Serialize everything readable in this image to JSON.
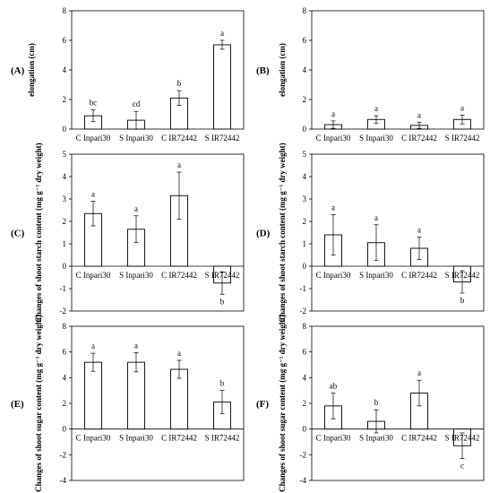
{
  "chart_data": [
    {
      "type": "bar",
      "panel_label": "(A)",
      "categories": [
        "C Inpari30",
        "S Inpari30",
        "C IR72442",
        "S IR72442"
      ],
      "values": [
        0.9,
        0.6,
        2.1,
        5.7
      ],
      "errors": [
        0.4,
        0.6,
        0.5,
        0.3
      ],
      "significance": [
        "bc",
        "cd",
        "b",
        "a"
      ],
      "ylabel": "elongation (cm)",
      "ylim": [
        0,
        8
      ],
      "yticks": [
        0,
        2,
        4,
        6,
        8
      ],
      "grid": false,
      "color": "#ffffff",
      "edge_color": "#000000"
    },
    {
      "type": "bar",
      "panel_label": "(B)",
      "categories": [
        "C Inpari30",
        "S Inpari30",
        "C IR72442",
        "S IR72442"
      ],
      "values": [
        0.3,
        0.65,
        0.25,
        0.65
      ],
      "errors": [
        0.25,
        0.25,
        0.2,
        0.3
      ],
      "significance": [
        "a",
        "a",
        "a",
        "a"
      ],
      "ylabel": "elongation (cm)",
      "ylim": [
        0,
        8
      ],
      "yticks": [
        0,
        2,
        4,
        6,
        8
      ],
      "grid": false,
      "color": "#ffffff",
      "edge_color": "#000000"
    },
    {
      "type": "bar",
      "panel_label": "(C)",
      "categories": [
        "C Inpari30",
        "S Inpari30",
        "C IR72442",
        "S IR72442"
      ],
      "values": [
        2.35,
        1.65,
        3.15,
        -0.75
      ],
      "errors": [
        0.55,
        0.6,
        1.05,
        0.5
      ],
      "significance": [
        "a",
        "a",
        "a",
        "b"
      ],
      "ylabel": "Changes of shoot starch content (mg g⁻¹ dry weight)",
      "ylim": [
        -2,
        5
      ],
      "yticks": [
        -2,
        -1,
        0,
        1,
        2,
        3,
        4,
        5
      ],
      "grid": false,
      "color": "#ffffff",
      "edge_color": "#000000"
    },
    {
      "type": "bar",
      "panel_label": "(D)",
      "categories": [
        "C Inpari30",
        "S Inpari30",
        "C IR72442",
        "S IR72442"
      ],
      "values": [
        1.4,
        1.05,
        0.8,
        -0.7
      ],
      "errors": [
        0.9,
        0.8,
        0.5,
        0.5
      ],
      "significance": [
        "a",
        "a",
        "a",
        "b"
      ],
      "ylabel": "Changes of shoot starch content (mg g⁻¹ dry weight)",
      "ylim": [
        -2,
        5
      ],
      "yticks": [
        -2,
        -1,
        0,
        1,
        2,
        3,
        4,
        5
      ],
      "grid": false,
      "color": "#ffffff",
      "edge_color": "#000000"
    },
    {
      "type": "bar",
      "panel_label": "(E)",
      "categories": [
        "C Inpari30",
        "S Inpari30",
        "C IR72442",
        "S IR72442"
      ],
      "values": [
        5.2,
        5.2,
        4.65,
        2.1
      ],
      "errors": [
        0.7,
        0.75,
        0.7,
        0.9
      ],
      "significance": [
        "a",
        "a",
        "a",
        "b"
      ],
      "ylabel": "Changes of shoot sugar content (mg g⁻¹ dry weight)",
      "ylim": [
        -4,
        8
      ],
      "yticks": [
        -4,
        -2,
        0,
        2,
        4,
        6,
        8
      ],
      "grid": false,
      "color": "#ffffff",
      "edge_color": "#000000"
    },
    {
      "type": "bar",
      "panel_label": "(F)",
      "categories": [
        "C Inpari30",
        "S Inpari30",
        "C IR72442",
        "S IR72442"
      ],
      "values": [
        1.8,
        0.6,
        2.8,
        -1.3
      ],
      "errors": [
        1.0,
        0.9,
        1.0,
        1.0
      ],
      "significance": [
        "ab",
        "b",
        "a",
        "c"
      ],
      "ylabel": "Changes of shoot sugar content (mg g⁻¹ dry weight)",
      "ylim": [
        -4,
        8
      ],
      "yticks": [
        -4,
        -2,
        0,
        2,
        4,
        6,
        8
      ],
      "grid": false,
      "color": "#ffffff",
      "edge_color": "#000000"
    }
  ]
}
